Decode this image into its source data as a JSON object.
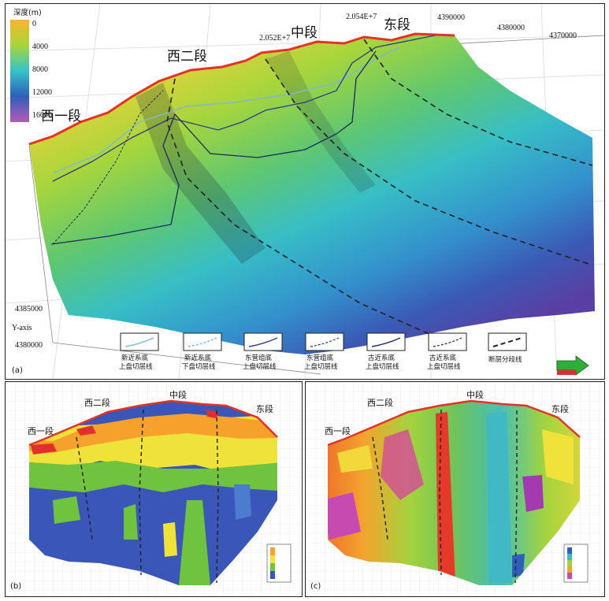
{
  "panel_a": {
    "label": "(a)",
    "colorbar": {
      "title": "深度(m)",
      "ticks": [
        "0",
        "4000",
        "8000",
        "12000",
        "16000"
      ],
      "colors": [
        "#f7b52c",
        "#a8d63a",
        "#35c3c9",
        "#2f5fb9",
        "#b45bb6"
      ]
    },
    "segments": [
      "西一段",
      "西二段",
      "中段",
      "东段"
    ],
    "top_axis": [
      "2.052E+7",
      "2.054E+7",
      "4390000",
      "4380000",
      "4370000"
    ],
    "left_axis": [
      "4385000",
      "4380000"
    ],
    "y_axis_title": "Y-axis",
    "legend": [
      {
        "line1": "新近系底",
        "line2": "上盘切层线"
      },
      {
        "line1": "新近系底",
        "line2": "下盘切层线"
      },
      {
        "line1": "东营组底",
        "line2": "上盘切层线"
      },
      {
        "line1": "东营组底",
        "line2": "上盘切层线"
      },
      {
        "line1": "古近系底",
        "line2": "上盘切层线"
      },
      {
        "line1": "古近系底",
        "line2": "上盘切层线"
      },
      {
        "line1": "断层分段线",
        "line2": ""
      }
    ],
    "line_colors": {
      "fault_trace": "#e53226",
      "neogene": "#7fb7d9",
      "dongying": "#2f3b8a",
      "paleogene": "#1f2a5a",
      "segment": "#222222"
    }
  },
  "panel_b": {
    "label": "(b)",
    "segments": [
      "西二段",
      "中段",
      "西一段",
      "东段"
    ]
  },
  "panel_c": {
    "label": "(c)",
    "segments": [
      "西二段",
      "中段",
      "西一段",
      "东段"
    ]
  }
}
